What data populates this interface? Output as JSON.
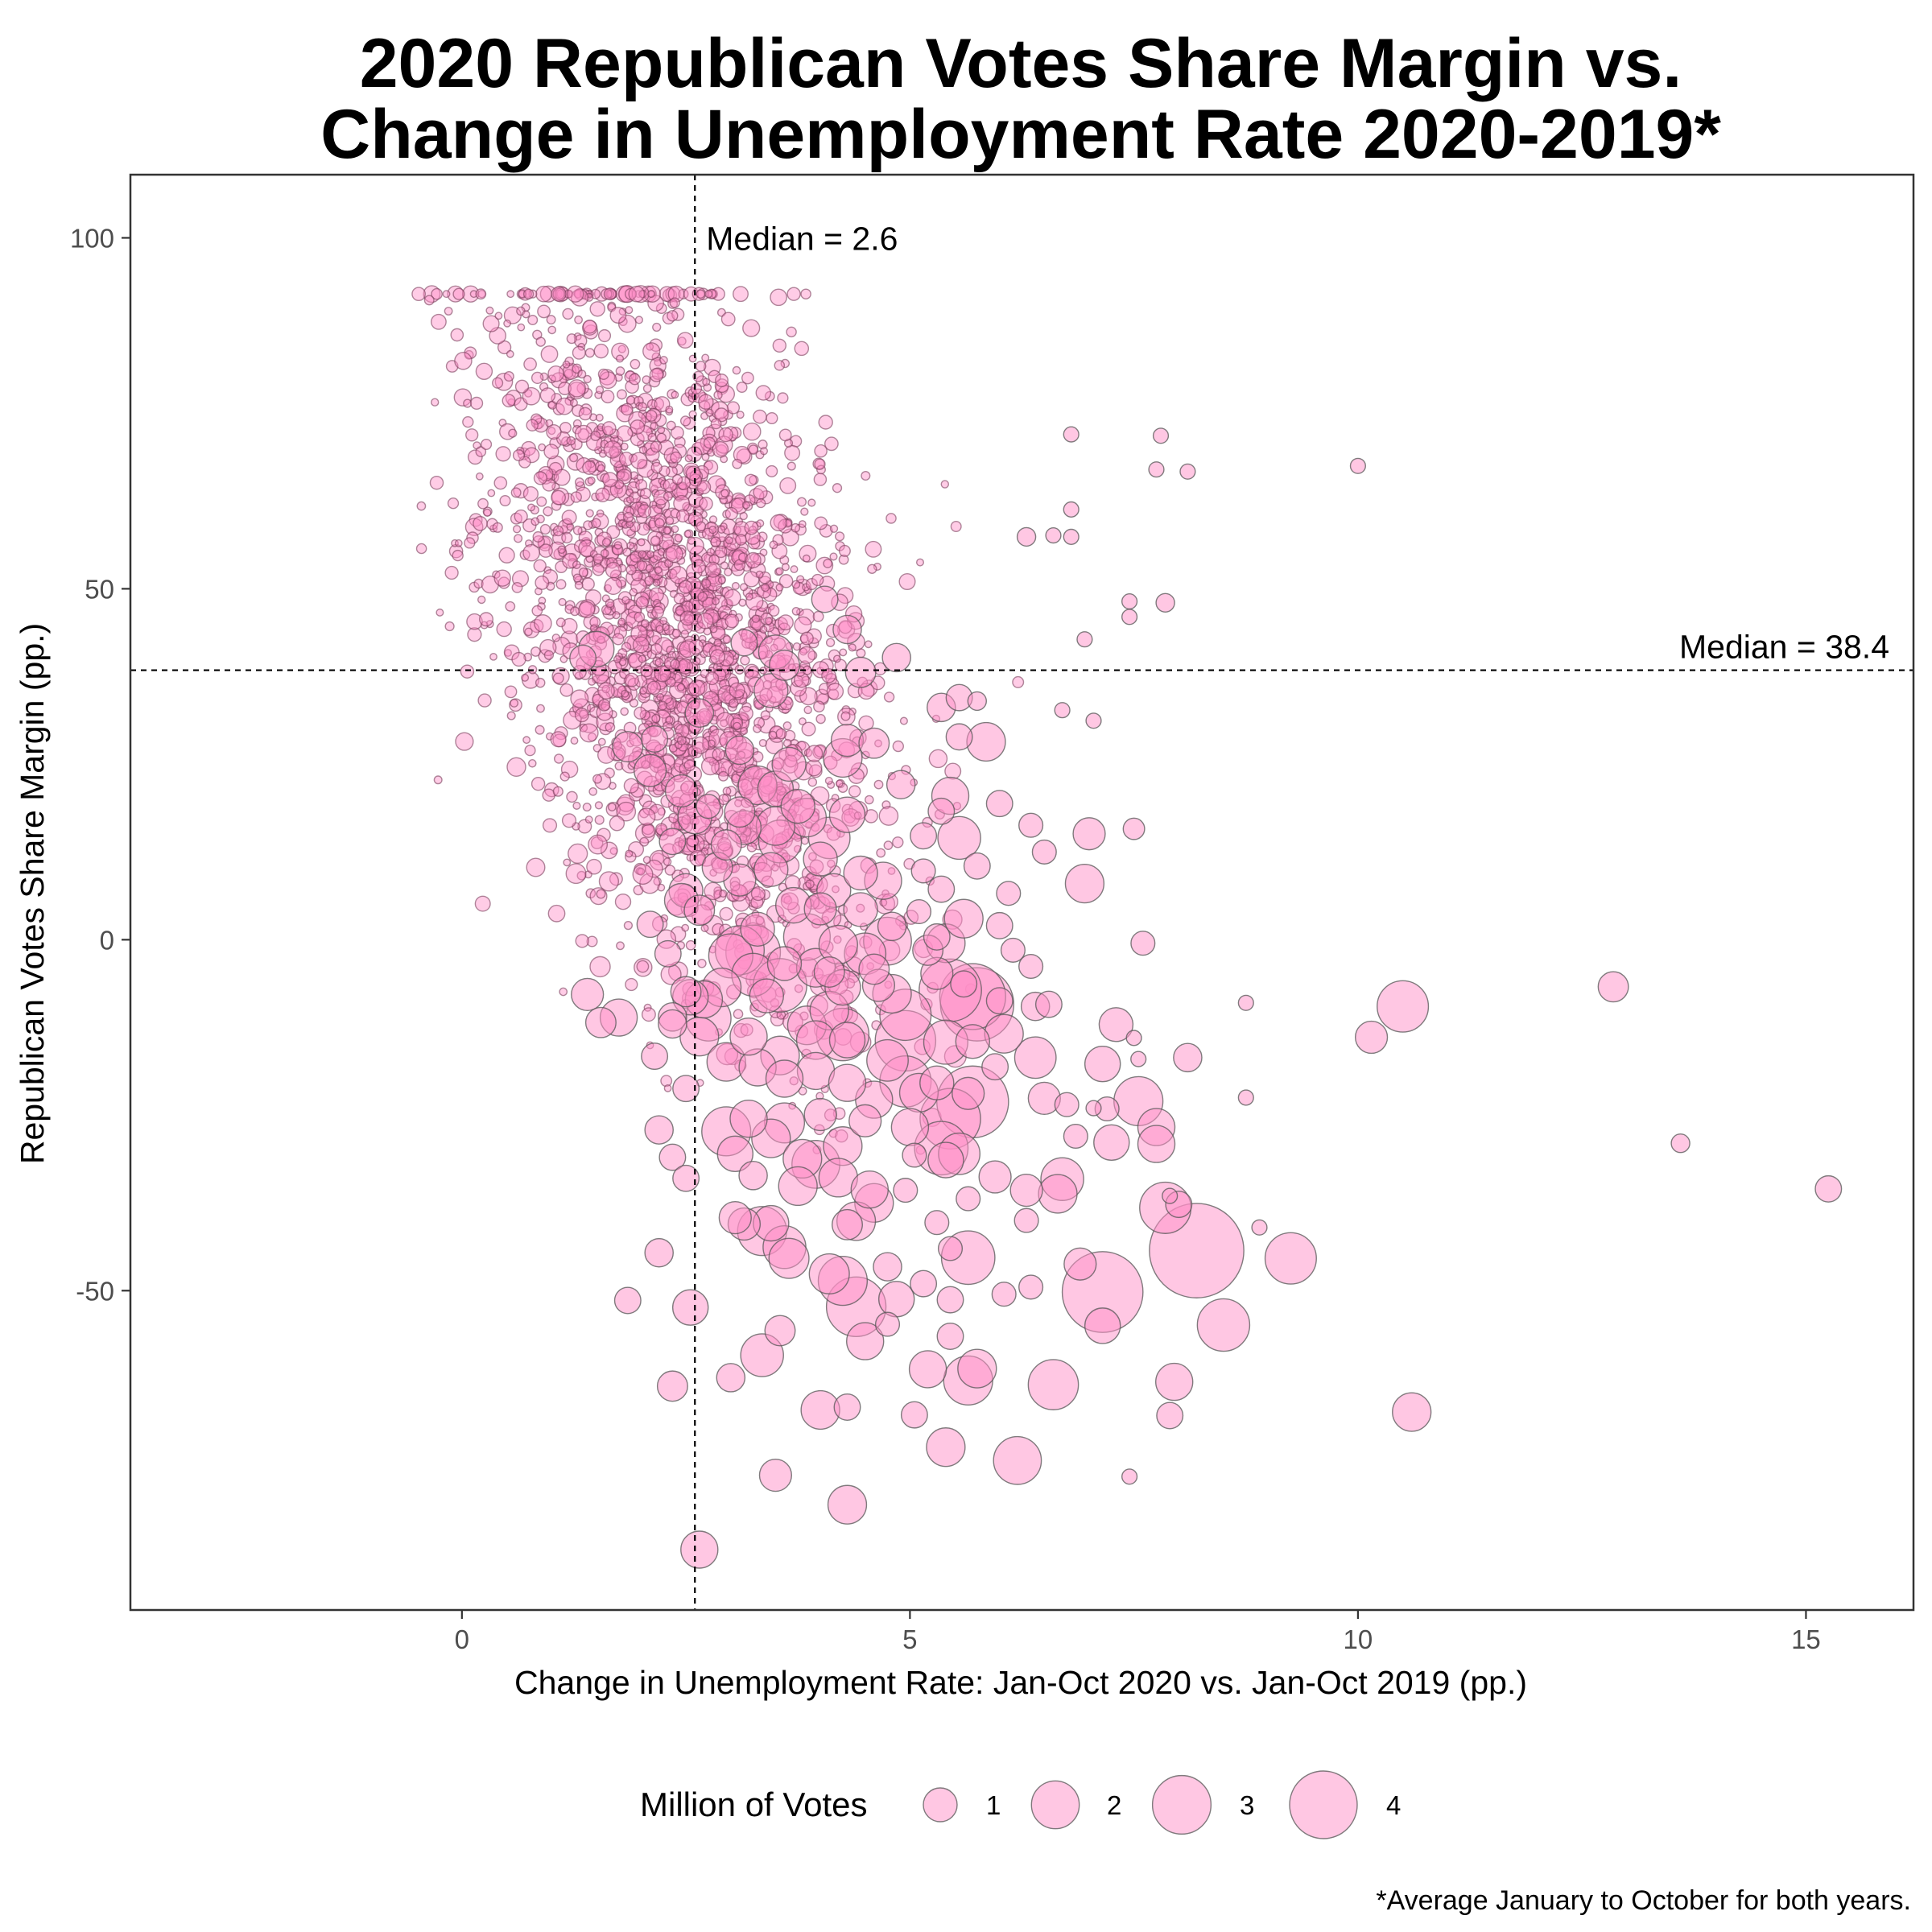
{
  "chart_data": {
    "type": "scatter",
    "title": [
      "2020 Republican Votes Share Margin vs.",
      "Change in Unemployment Rate 2020-2019*"
    ],
    "xlabel": "Change in Unemployment Rate: Jan-Oct 2020 vs. Jan-Oct 2019 (pp.)",
    "ylabel": "Republican Votes Share Margin (pp.)",
    "caption": "*Average January to October for both years.",
    "xlim": [
      -3.7,
      16.2
    ],
    "ylim": [
      -95.5,
      109
    ],
    "x_ticks": [
      0,
      5,
      10,
      15
    ],
    "x_tick_labels": [
      "0",
      "5",
      "10",
      "15"
    ],
    "y_ticks": [
      -50,
      0,
      50,
      100
    ],
    "y_tick_labels": [
      "-50",
      "0",
      "50",
      "100"
    ],
    "grid": false,
    "point_color": "#ff8fc8",
    "point_stroke": "#555555",
    "reference_lines": [
      {
        "axis": "x",
        "value": 2.6,
        "label": "Median =  2.6"
      },
      {
        "axis": "y",
        "value": 38.4,
        "label": "Median =  38.4"
      }
    ],
    "size_legend": {
      "title": "Million of Votes",
      "position": "bottom",
      "values": [
        1,
        2,
        3,
        4
      ],
      "labels": [
        "1",
        "2",
        "3",
        "4"
      ]
    },
    "points": [
      [
        2.65,
        -86.9,
        1.2
      ],
      [
        4.3,
        -80.5,
        1.3
      ],
      [
        6.2,
        -74.2,
        2.0
      ],
      [
        3.5,
        -76.3,
        0.9
      ],
      [
        5.4,
        -72.3,
        1.3
      ],
      [
        4.0,
        -67.0,
        1.3
      ],
      [
        10.6,
        -67.3,
        1.3
      ],
      [
        7.9,
        -67.8,
        0.6
      ],
      [
        4.5,
        -57.2,
        1.2
      ],
      [
        3.35,
        -59.2,
        1.6
      ],
      [
        5.2,
        -61.2,
        1.2
      ],
      [
        5.65,
        -62.8,
        2.1
      ],
      [
        5.75,
        -61.1,
        1.3
      ],
      [
        6.6,
        -63.4,
        2.2
      ],
      [
        7.95,
        -63.0,
        1.2
      ],
      [
        3.0,
        -62.4,
        0.7
      ],
      [
        2.35,
        -63.6,
        0.8
      ],
      [
        4.4,
        -52.3,
        3.1
      ],
      [
        4.85,
        -51.2,
        1.1
      ],
      [
        4.1,
        -47.6,
        1.4
      ],
      [
        4.25,
        -48.6,
        2.1
      ],
      [
        4.75,
        -46.6,
        0.7
      ],
      [
        8.2,
        -44.3,
        7.8
      ],
      [
        9.25,
        -45.4,
        2.3
      ],
      [
        8.5,
        -54.9,
        2.4
      ],
      [
        7.15,
        -50.2,
        5.7
      ],
      [
        7.15,
        -55.0,
        1.1
      ],
      [
        6.9,
        -46.2,
        0.9
      ],
      [
        5.65,
        -45.3,
        2.5
      ],
      [
        3.65,
        -45.4,
        1.4
      ],
      [
        3.35,
        -41.5,
        2.1
      ],
      [
        3.6,
        -43.8,
        1.6
      ],
      [
        3.45,
        -40.4,
        1.1
      ],
      [
        2.55,
        -52.4,
        1.1
      ],
      [
        1.85,
        -51.4,
        0.6
      ],
      [
        2.2,
        -44.6,
        0.7
      ],
      [
        7.85,
        -38.2,
        2.3
      ],
      [
        8.0,
        -37.7,
        0.6
      ],
      [
        6.65,
        -36.2,
        1.3
      ],
      [
        6.7,
        -34.1,
        1.6
      ],
      [
        5.95,
        -33.8,
        0.9
      ],
      [
        6.3,
        -35.7,
        0.9
      ],
      [
        5.4,
        -31.4,
        1.1
      ],
      [
        5.35,
        -29.7,
        2.5
      ],
      [
        5.55,
        -30.5,
        1.5
      ],
      [
        7.25,
        -28.9,
        1.1
      ],
      [
        7.55,
        -23.0,
        2.1
      ],
      [
        7.75,
        -26.7,
        1.2
      ],
      [
        7.75,
        -29.1,
        1.2
      ],
      [
        7.2,
        -24.1,
        0.5
      ],
      [
        8.1,
        -16.8,
        0.7
      ],
      [
        7.15,
        -17.7,
        1.1
      ],
      [
        7.3,
        -12.1,
        1.0
      ],
      [
        6.5,
        -22.6,
        0.9
      ],
      [
        6.4,
        -16.8,
        1.5
      ],
      [
        5.7,
        -23.1,
        4.5
      ],
      [
        5.45,
        -25.5,
        3.2
      ],
      [
        5.3,
        -20.4,
        1.0
      ],
      [
        5.65,
        -21.9,
        0.9
      ],
      [
        5.75,
        -9.2,
        4.7
      ],
      [
        5.7,
        -8.1,
        3.8
      ],
      [
        5.45,
        -7.2,
        3.4
      ],
      [
        6.0,
        -8.7,
        0.6
      ],
      [
        6.4,
        -9.5,
        0.7
      ],
      [
        6.05,
        -13.4,
        1.3
      ],
      [
        5.7,
        -14.5,
        1.0
      ],
      [
        5.4,
        -14.6,
        1.7
      ],
      [
        4.95,
        -14.4,
        3.2
      ],
      [
        4.95,
        -20.2,
        2.3
      ],
      [
        5.1,
        -21.8,
        1.3
      ],
      [
        5.0,
        -26.7,
        1.2
      ],
      [
        4.6,
        -22.8,
        1.2
      ],
      [
        4.75,
        -17.2,
        1.5
      ],
      [
        4.95,
        -10.7,
        2.3
      ],
      [
        4.8,
        -7.7,
        1.3
      ],
      [
        4.6,
        -4.2,
        0.8
      ],
      [
        4.5,
        -2.0,
        1.5
      ],
      [
        4.75,
        -0.2,
        2.0
      ],
      [
        5.4,
        -0.5,
        1.3
      ],
      [
        5.3,
        -4.8,
        0.9
      ],
      [
        5.2,
        -1.5,
        0.8
      ],
      [
        5.6,
        3.0,
        1.3
      ],
      [
        6.0,
        2.0,
        0.6
      ],
      [
        6.95,
        8.0,
        1.3
      ],
      [
        7.0,
        15.1,
        0.9
      ],
      [
        7.5,
        15.8,
        0.4
      ],
      [
        5.75,
        10.5,
        0.6
      ],
      [
        5.55,
        14.5,
        1.6
      ],
      [
        5.15,
        14.8,
        0.6
      ],
      [
        5.35,
        18.3,
        0.6
      ],
      [
        5.45,
        20.5,
        1.2
      ],
      [
        5.85,
        28.2,
        1.3
      ],
      [
        5.55,
        28.9,
        0.6
      ],
      [
        5.35,
        33.1,
        0.7
      ],
      [
        4.6,
        28.0,
        0.8
      ],
      [
        4.3,
        28.4,
        0.9
      ],
      [
        4.9,
        22.1,
        0.7
      ],
      [
        4.25,
        25.9,
        1.3
      ],
      [
        4.3,
        17.8,
        1.1
      ],
      [
        4.1,
        14.5,
        1.5
      ],
      [
        3.85,
        17.4,
        1.3
      ],
      [
        3.75,
        19.0,
        1.0
      ],
      [
        3.5,
        21.5,
        1.1
      ],
      [
        3.3,
        22.0,
        1.3
      ],
      [
        3.1,
        18.2,
        0.8
      ],
      [
        3.55,
        14.0,
        1.6
      ],
      [
        3.45,
        10.0,
        1.0
      ],
      [
        3.1,
        8.5,
        0.9
      ],
      [
        4.15,
        7.0,
        1.0
      ],
      [
        4.45,
        9.5,
        1.0
      ],
      [
        4.7,
        8.4,
        1.2
      ],
      [
        4.0,
        11.5,
        1.0
      ],
      [
        3.3,
        1.5,
        1.0
      ],
      [
        3.1,
        -1.5,
        2.1
      ],
      [
        3.25,
        -1.8,
        2.6
      ],
      [
        3.0,
        -2.3,
        1.7
      ],
      [
        3.55,
        -6.5,
        2.5
      ],
      [
        3.25,
        -5.0,
        1.6
      ],
      [
        3.4,
        -8.0,
        1.0
      ],
      [
        2.9,
        -6.8,
        1.3
      ],
      [
        2.7,
        -8.5,
        1.2
      ],
      [
        2.55,
        -8.2,
        1.1
      ],
      [
        2.65,
        -13.8,
        1.3
      ],
      [
        2.75,
        -11.2,
        1.8
      ],
      [
        2.95,
        -17.4,
        1.3
      ],
      [
        3.3,
        -18.2,
        1.2
      ],
      [
        3.55,
        -16.5,
        1.3
      ],
      [
        3.2,
        -13.8,
        1.2
      ],
      [
        3.85,
        -12.2,
        1.3
      ],
      [
        4.1,
        -10.1,
        1.3
      ],
      [
        4.25,
        -13.5,
        2.4
      ],
      [
        3.95,
        -14.3,
        1.3
      ],
      [
        3.95,
        -18.7,
        1.2
      ],
      [
        3.6,
        -19.8,
        1.2
      ],
      [
        4.3,
        -20.4,
        1.2
      ],
      [
        4.5,
        -25.8,
        0.9
      ],
      [
        4.0,
        -24.9,
        0.9
      ],
      [
        3.6,
        -26.1,
        1.4
      ],
      [
        3.45,
        -28.3,
        1.3
      ],
      [
        3.2,
        -25.5,
        1.2
      ],
      [
        2.95,
        -27.3,
        2.1
      ],
      [
        3.05,
        -30.5,
        1.1
      ],
      [
        3.25,
        -33.6,
        0.7
      ],
      [
        3.8,
        -31.2,
        1.3
      ],
      [
        3.95,
        -32.0,
        2.0
      ],
      [
        4.25,
        -29.4,
        1.3
      ],
      [
        3.75,
        -35.1,
        1.3
      ],
      [
        4.2,
        -33.9,
        1.3
      ],
      [
        4.55,
        -35.6,
        1.2
      ],
      [
        4.6,
        -37.5,
        1.3
      ],
      [
        4.4,
        -40.1,
        1.3
      ],
      [
        4.3,
        -40.6,
        0.8
      ],
      [
        3.15,
        -40.5,
        0.9
      ],
      [
        3.05,
        -39.6,
        0.9
      ],
      [
        3.55,
        -55.7,
        0.8
      ],
      [
        4.3,
        -14.3,
        1.1
      ],
      [
        4.25,
        -6.8,
        1.1
      ],
      [
        3.95,
        -4.0,
        1.3
      ],
      [
        4.2,
        -0.7,
        1.3
      ],
      [
        3.85,
        0.4,
        1.9
      ],
      [
        3.6,
        -3.4,
        1.0
      ],
      [
        3.7,
        4.9,
        1.1
      ],
      [
        4.0,
        4.4,
        0.9
      ],
      [
        4.45,
        4.3,
        1.0
      ],
      [
        4.8,
        1.9,
        0.7
      ],
      [
        4.1,
        -4.6,
        0.8
      ],
      [
        4.65,
        -6.5,
        0.9
      ],
      [
        2.5,
        -7.4,
        0.8
      ],
      [
        2.35,
        -11.0,
        0.7
      ],
      [
        2.35,
        -12.0,
        0.7
      ],
      [
        1.75,
        -11.1,
        1.2
      ],
      [
        1.4,
        -7.8,
        0.9
      ],
      [
        1.55,
        -11.8,
        0.8
      ],
      [
        2.2,
        -27.1,
        0.7
      ],
      [
        2.15,
        -16.6,
        0.6
      ],
      [
        2.5,
        -21.2,
        0.6
      ],
      [
        2.35,
        -31.0,
        0.6
      ],
      [
        2.5,
        -34.0,
        0.6
      ],
      [
        2.3,
        -2.0,
        0.6
      ],
      [
        2.1,
        2.2,
        0.6
      ],
      [
        2.5,
        7.0,
        1.0
      ],
      [
        2.45,
        5.6,
        1.0
      ],
      [
        2.85,
        10.3,
        0.8
      ],
      [
        2.65,
        4.2,
        0.8
      ],
      [
        2.95,
        13.5,
        0.8
      ],
      [
        3.15,
        16.0,
        1.0
      ],
      [
        3.5,
        16.2,
        1.3
      ],
      [
        3.65,
        25.0,
        1.0
      ],
      [
        3.1,
        27.0,
        0.7
      ],
      [
        3.45,
        35.5,
        1.0
      ],
      [
        3.5,
        41.0,
        1.0
      ],
      [
        3.15,
        42.3,
        0.6
      ],
      [
        3.6,
        39.1,
        0.8
      ],
      [
        4.3,
        44.2,
        0.7
      ],
      [
        4.45,
        38.1,
        0.8
      ],
      [
        2.6,
        17.5,
        1.0
      ],
      [
        2.45,
        21.2,
        0.9
      ],
      [
        2.1,
        24.1,
        0.9
      ],
      [
        1.85,
        27.5,
        0.8
      ],
      [
        1.5,
        41.4,
        1.1
      ],
      [
        1.35,
        40.1,
        0.6
      ],
      [
        2.65,
        32.3,
        0.7
      ],
      [
        2.15,
        28.6,
        0.6
      ],
      [
        2.35,
        14.0,
        0.6
      ],
      [
        2.75,
        19.0,
        0.5
      ],
      [
        4.85,
        40.2,
        0.7
      ],
      [
        4.05,
        48.5,
        0.6
      ],
      [
        5.55,
        34.5,
        0.6
      ],
      [
        6.0,
        19.4,
        0.6
      ],
      [
        6.15,
        -1.5,
        0.5
      ],
      [
        6.35,
        -3.8,
        0.5
      ],
      [
        5.95,
        -18.1,
        0.6
      ],
      [
        6.55,
        -9.2,
        0.6
      ],
      [
        6.3,
        -40.0,
        0.5
      ],
      [
        6.75,
        -23.5,
        0.5
      ],
      [
        6.85,
        -28.0,
        0.5
      ],
      [
        6.35,
        -49.5,
        0.5
      ],
      [
        5.45,
        -51.3,
        0.6
      ],
      [
        5.15,
        -49.0,
        0.6
      ],
      [
        5.45,
        -44.0,
        0.5
      ],
      [
        6.05,
        -50.5,
        0.5
      ],
      [
        4.75,
        -54.8,
        0.5
      ],
      [
        4.3,
        -66.6,
        0.6
      ],
      [
        5.05,
        -67.7,
        0.6
      ],
      [
        5.45,
        -56.5,
        0.6
      ],
      [
        5.3,
        -40.3,
        0.5
      ],
      [
        5.65,
        -36.9,
        0.5
      ],
      [
        5.05,
        -30.7,
        0.5
      ],
      [
        4.95,
        -35.7,
        0.5
      ],
      [
        5.6,
        -6.3,
        0.6
      ],
      [
        5.3,
        0.4,
        0.6
      ],
      [
        5.1,
        4.0,
        0.5
      ],
      [
        5.35,
        7.2,
        0.6
      ],
      [
        5.15,
        9.8,
        0.5
      ],
      [
        6.1,
        6.6,
        0.5
      ],
      [
        6.5,
        12.5,
        0.5
      ],
      [
        6.35,
        16.3,
        0.5
      ],
      [
        10.15,
        -13.9,
        0.9
      ],
      [
        10.5,
        -9.5,
        2.3
      ],
      [
        12.85,
        -6.7,
        0.8
      ],
      [
        13.6,
        -29.0,
        0.3
      ],
      [
        15.25,
        -35.5,
        0.6
      ],
      [
        8.9,
        -41.0,
        0.2
      ],
      [
        8.75,
        -22.5,
        0.2
      ],
      [
        8.75,
        -9.0,
        0.2
      ],
      [
        7.05,
        -24.0,
        0.2
      ],
      [
        7.45,
        -76.5,
        0.2
      ],
      [
        7.55,
        -17.0,
        0.2
      ],
      [
        7.9,
        -36.5,
        0.2
      ],
      [
        7.5,
        -14.0,
        0.2
      ],
      [
        7.6,
        -0.5,
        0.5
      ],
      [
        8.1,
        66.7,
        0.2
      ],
      [
        7.75,
        67.0,
        0.2
      ],
      [
        7.8,
        71.8,
        0.2
      ],
      [
        7.45,
        48.2,
        0.2
      ],
      [
        7.85,
        48.0,
        0.3
      ],
      [
        10.0,
        67.5,
        0.2
      ],
      [
        6.8,
        72.0,
        0.2
      ],
      [
        6.8,
        61.3,
        0.2
      ],
      [
        6.95,
        42.8,
        0.2
      ],
      [
        6.7,
        32.7,
        0.2
      ],
      [
        7.05,
        31.2,
        0.2
      ],
      [
        7.45,
        46.0,
        0.2
      ],
      [
        6.6,
        57.6,
        0.2
      ],
      [
        6.8,
        57.4,
        0.2
      ],
      [
        6.3,
        57.4,
        0.3
      ],
      [
        5.75,
        34.0,
        0.3
      ]
    ]
  }
}
